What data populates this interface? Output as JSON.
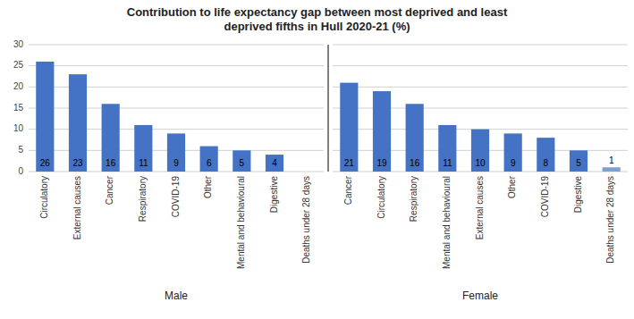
{
  "chart_data": [
    {
      "type": "bar",
      "title": "Contribution to life expectancy gap between most deprived and least\ndeprived fifths in Hull 2020-21 (%)",
      "xlabel": "Male",
      "categories": [
        "Circulatory",
        "External causes",
        "Cancer",
        "Respiratory",
        "COVID-19",
        "Other",
        "Mental and behavioural",
        "Digestive",
        "Deaths under 28 days"
      ],
      "values": [
        26,
        23,
        16,
        11,
        9,
        6,
        5,
        4,
        0
      ],
      "color": "#4472C4",
      "ylim": [
        0,
        30
      ],
      "yticks": [
        0,
        5,
        10,
        15,
        20,
        25,
        30
      ],
      "grid": true,
      "data_labels": true
    },
    {
      "type": "bar",
      "xlabel": "Female",
      "categories": [
        "Cancer",
        "Circulatory",
        "Respiratory",
        "Mental and behavioural",
        "External causes",
        "Other",
        "COVID-19",
        "Digestive",
        "Deaths under 28 days"
      ],
      "values": [
        21,
        19,
        16,
        11,
        10,
        9,
        8,
        5,
        1
      ],
      "colors": [
        "#4472C4",
        "#4472C4",
        "#4472C4",
        "#4472C4",
        "#4472C4",
        "#4472C4",
        "#4472C4",
        "#4472C4",
        "#7F9FD4"
      ],
      "ylim": [
        0,
        30
      ],
      "yticks": [
        0,
        5,
        10,
        15,
        20,
        25,
        30
      ],
      "grid": true,
      "data_labels": true,
      "tick_labels": "x"
    }
  ]
}
